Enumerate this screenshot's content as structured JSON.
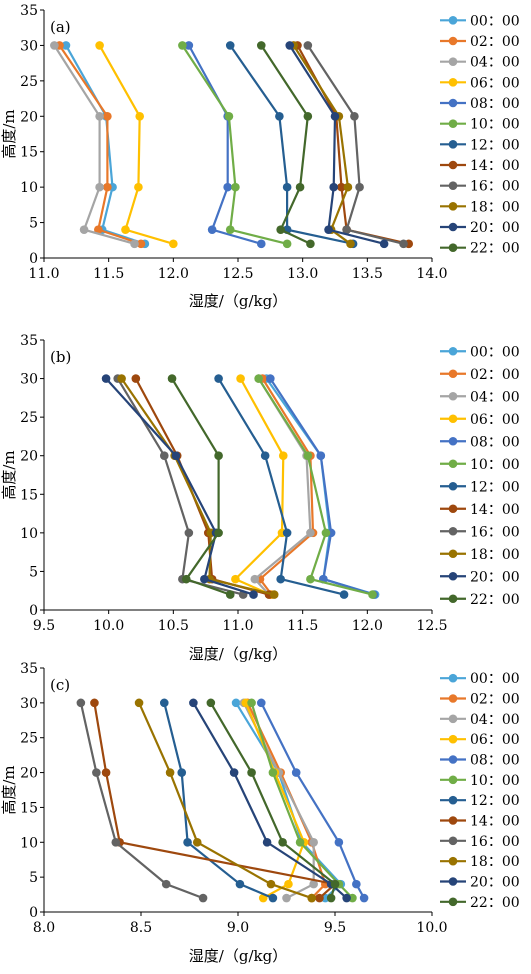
{
  "chart_data": [
    {
      "type": "line",
      "panel_label": "(a)",
      "xlabel": "湿度/（g/kg）",
      "ylabel": "高度/m",
      "xlim": [
        11.0,
        14.0
      ],
      "ylim": [
        0,
        35
      ],
      "xticks": [
        "11.0",
        "11.5",
        "12.0",
        "12.5",
        "13.0",
        "13.5",
        "14.0"
      ],
      "yticks": [
        "0",
        "5",
        "10",
        "15",
        "20",
        "25",
        "30",
        "35"
      ],
      "heights": [
        2,
        4,
        10,
        20,
        30
      ],
      "series": [
        {
          "name": "00：00",
          "color": "#4aa5d8",
          "values": [
            11.78,
            11.45,
            11.53,
            11.48,
            11.17
          ]
        },
        {
          "name": "02：00",
          "color": "#e8782a",
          "values": [
            11.75,
            11.42,
            11.49,
            11.49,
            11.12
          ]
        },
        {
          "name": "04：00",
          "color": "#a5a5a5",
          "values": [
            11.7,
            11.31,
            11.43,
            11.43,
            11.08
          ]
        },
        {
          "name": "06：00",
          "color": "#ffc000",
          "values": [
            12.0,
            11.63,
            11.73,
            11.74,
            11.43
          ]
        },
        {
          "name": "08：00",
          "color": "#4472c4",
          "values": [
            12.68,
            12.3,
            12.42,
            12.42,
            12.12
          ]
        },
        {
          "name": "10：00",
          "color": "#70ad47",
          "values": [
            12.88,
            12.44,
            12.48,
            12.43,
            12.07
          ]
        },
        {
          "name": "12：00",
          "color": "#255e91",
          "values": [
            13.39,
            12.88,
            12.88,
            12.82,
            12.44
          ]
        },
        {
          "name": "14：00",
          "color": "#9e480e",
          "values": [
            13.82,
            13.34,
            13.3,
            13.26,
            12.96
          ]
        },
        {
          "name": "16：00",
          "color": "#636363",
          "values": [
            13.78,
            13.34,
            13.44,
            13.4,
            13.04
          ]
        },
        {
          "name": "18：00",
          "color": "#997300",
          "values": [
            13.37,
            13.22,
            13.35,
            13.28,
            12.93
          ]
        },
        {
          "name": "20：00",
          "color": "#264478",
          "values": [
            13.63,
            13.2,
            13.24,
            13.25,
            12.9
          ]
        },
        {
          "name": "22：00",
          "color": "#43682b",
          "values": [
            13.06,
            12.83,
            12.98,
            13.04,
            12.68
          ]
        }
      ]
    },
    {
      "type": "line",
      "panel_label": "(b)",
      "xlabel": "湿度/（g/kg）",
      "ylabel": "高度/m",
      "xlim": [
        9.5,
        12.5
      ],
      "ylim": [
        0,
        35
      ],
      "xticks": [
        "9.5",
        "10.0",
        "10.5",
        "11.0",
        "11.5",
        "12.0",
        "12.5"
      ],
      "yticks": [
        "0",
        "5",
        "10",
        "15",
        "20",
        "25",
        "30",
        "35"
      ],
      "heights": [
        2,
        4,
        10,
        20,
        30
      ],
      "series": [
        {
          "name": "00：00",
          "color": "#4aa5d8",
          "values": [
            12.06,
            11.66,
            11.71,
            11.64,
            11.22
          ]
        },
        {
          "name": "02：00",
          "color": "#e8782a",
          "values": [
            11.26,
            11.17,
            11.58,
            11.56,
            11.19
          ]
        },
        {
          "name": "04：00",
          "color": "#a5a5a5",
          "values": [
            11.24,
            11.13,
            11.56,
            11.53,
            11.16
          ]
        },
        {
          "name": "06：00",
          "color": "#ffc000",
          "values": [
            11.25,
            10.98,
            11.34,
            11.35,
            11.02
          ]
        },
        {
          "name": "08：00",
          "color": "#4472c4",
          "values": [
            12.05,
            11.66,
            11.72,
            11.64,
            11.25
          ]
        },
        {
          "name": "10：00",
          "color": "#70ad47",
          "values": [
            12.04,
            11.56,
            11.68,
            11.54,
            11.16
          ]
        },
        {
          "name": "12：00",
          "color": "#255e91",
          "values": [
            11.82,
            11.33,
            11.38,
            11.21,
            10.85
          ]
        },
        {
          "name": "14：00",
          "color": "#9e480e",
          "values": [
            11.24,
            10.8,
            10.77,
            10.53,
            10.21
          ]
        },
        {
          "name": "16：00",
          "color": "#636363",
          "values": [
            11.04,
            10.57,
            10.62,
            10.43,
            10.07
          ]
        },
        {
          "name": "18：00",
          "color": "#997300",
          "values": [
            11.28,
            10.78,
            10.79,
            10.51,
            10.1
          ]
        },
        {
          "name": "20：00",
          "color": "#264478",
          "values": [
            11.12,
            10.74,
            10.83,
            10.52,
            9.98
          ]
        },
        {
          "name": "22：00",
          "color": "#43682b",
          "values": [
            10.94,
            10.6,
            10.85,
            10.85,
            10.49
          ]
        }
      ]
    },
    {
      "type": "line",
      "panel_label": "(c)",
      "xlabel": "湿度/（g/kg）",
      "ylabel": "高度/m",
      "xlim": [
        8.0,
        10.0
      ],
      "ylim": [
        0,
        35
      ],
      "xticks": [
        "8.0",
        "8.5",
        "9.0",
        "9.5",
        "10.0"
      ],
      "yticks": [
        "0",
        "5",
        "10",
        "15",
        "20",
        "25",
        "30",
        "35"
      ],
      "heights": [
        2,
        4,
        10,
        20,
        30
      ],
      "series": [
        {
          "name": "00：00",
          "color": "#4aa5d8",
          "values": [
            9.45,
            9.53,
            9.33,
            9.21,
            8.99
          ]
        },
        {
          "name": "02：00",
          "color": "#e8782a",
          "values": [
            9.38,
            9.45,
            9.38,
            9.22,
            9.05
          ]
        },
        {
          "name": "04：00",
          "color": "#a5a5a5",
          "values": [
            9.25,
            9.39,
            9.39,
            9.21,
            9.03
          ]
        },
        {
          "name": "06：00",
          "color": "#ffc000",
          "values": [
            9.13,
            9.26,
            9.34,
            9.19,
            9.04
          ]
        },
        {
          "name": "08：00",
          "color": "#4472c4",
          "values": [
            9.65,
            9.61,
            9.52,
            9.3,
            9.12
          ]
        },
        {
          "name": "10：00",
          "color": "#70ad47",
          "values": [
            9.59,
            9.52,
            9.32,
            9.18,
            9.07
          ]
        },
        {
          "name": "12：00",
          "color": "#255e91",
          "values": [
            9.18,
            9.01,
            8.74,
            8.71,
            8.62
          ]
        },
        {
          "name": "14：00",
          "color": "#9e480e",
          "values": [
            9.42,
            9.5,
            8.39,
            8.32,
            8.26
          ]
        },
        {
          "name": "16：00",
          "color": "#636363",
          "values": [
            8.82,
            8.63,
            8.37,
            8.27,
            8.19
          ]
        },
        {
          "name": "18：00",
          "color": "#997300",
          "values": [
            9.38,
            9.17,
            8.79,
            8.65,
            8.49
          ]
        },
        {
          "name": "20：00",
          "color": "#264478",
          "values": [
            9.56,
            9.48,
            9.15,
            8.98,
            8.77
          ]
        },
        {
          "name": "22：00",
          "color": "#43682b",
          "values": [
            9.48,
            9.5,
            9.23,
            9.07,
            8.86
          ]
        }
      ]
    }
  ]
}
